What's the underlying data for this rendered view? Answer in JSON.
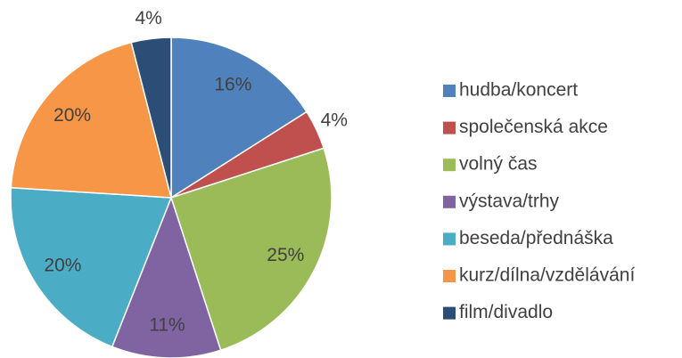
{
  "chart_data": {
    "type": "pie",
    "categories": [
      "hudba/koncert",
      "společenská akce",
      "volný čas",
      "výstava/trhy",
      "beseda/přednáška",
      "kurz/dílna/vzdělávání",
      "film/divadlo"
    ],
    "values": [
      16,
      4,
      25,
      11,
      20,
      20,
      4
    ],
    "value_labels": [
      "16%",
      "4%",
      "25%",
      "11%",
      "20%",
      "20%",
      "4%"
    ],
    "colors": [
      "#4f81bd",
      "#c0504d",
      "#9bbb59",
      "#8064a2",
      "#4bacc6",
      "#f79646",
      "#2c4d75"
    ],
    "legend": "right"
  }
}
